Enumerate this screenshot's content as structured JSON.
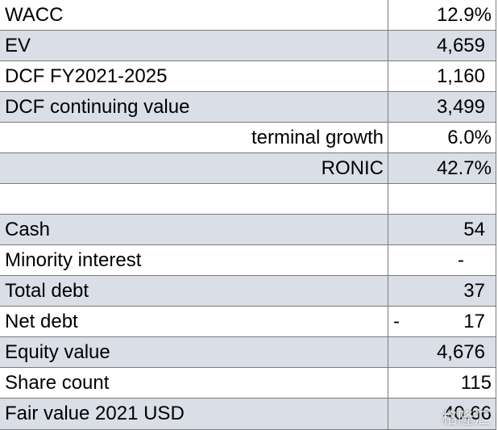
{
  "rows": [
    {
      "label": "WACC",
      "value": "12.9%"
    },
    {
      "label": "EV",
      "value": "4,659"
    },
    {
      "label": "DCF FY2021-2025",
      "value": "1,160"
    },
    {
      "label": "DCF continuing value",
      "value": "3,499"
    },
    {
      "label": "terminal growth",
      "value": "6.0%"
    },
    {
      "label": "RONIC",
      "value": "42.7%"
    },
    {
      "label": "",
      "value": ""
    },
    {
      "label": "Cash",
      "value": "54"
    },
    {
      "label": "Minority interest",
      "value": "-"
    },
    {
      "label": "Total debt",
      "value": "37"
    },
    {
      "label": "Net debt",
      "value": "17",
      "prefix": "-"
    },
    {
      "label": "Equity value",
      "value": "4,676"
    },
    {
      "label": "Share count",
      "value": "115"
    },
    {
      "label": "Fair value 2021 USD",
      "value": "40.66"
    }
  ],
  "watermark": "格隆汇"
}
